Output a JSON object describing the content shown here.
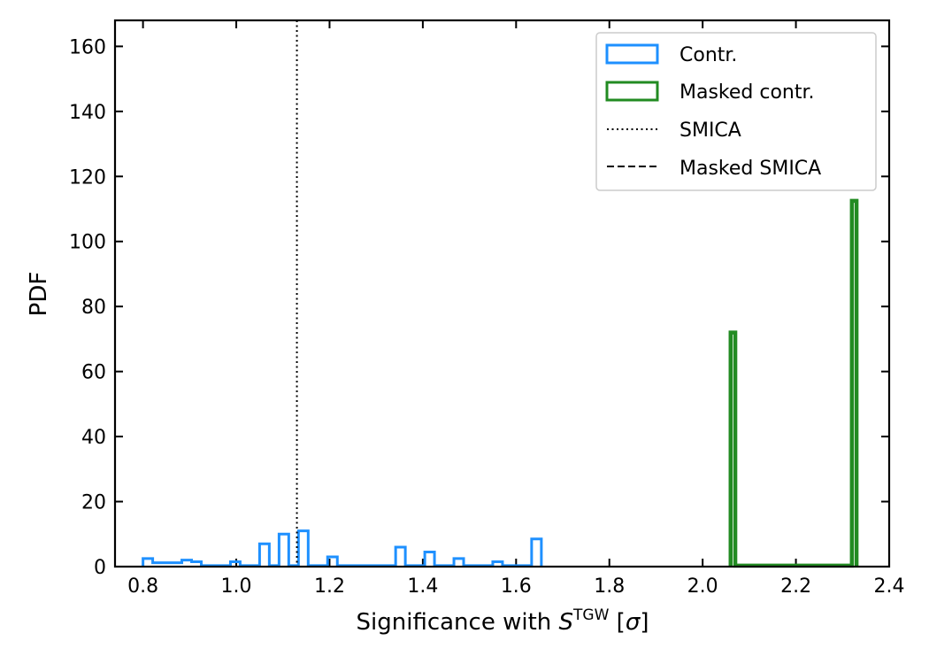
{
  "chart_data": {
    "type": "histogram",
    "xlabel_prefix": "Significance with ",
    "xlabel_symbol": "S",
    "xlabel_superscript": "TGW",
    "xlabel_suffix_open": " [",
    "xlabel_sigma": "σ",
    "xlabel_suffix_close": "]",
    "ylabel": "PDF",
    "xlim": [
      0.74,
      2.4
    ],
    "ylim": [
      0,
      168
    ],
    "xticks": [
      0.8,
      1.0,
      1.2,
      1.4,
      1.6,
      1.8,
      2.0,
      2.2,
      2.4
    ],
    "xtick_labels": [
      "0.8",
      "1.0",
      "1.2",
      "1.4",
      "1.6",
      "1.8",
      "2.0",
      "2.2",
      "2.4"
    ],
    "yticks": [
      0,
      20,
      40,
      60,
      80,
      100,
      120,
      140,
      160
    ],
    "ytick_labels": [
      "0",
      "20",
      "40",
      "60",
      "80",
      "100",
      "120",
      "140",
      "160"
    ],
    "legend_position": "top-right",
    "series": [
      {
        "name": "Contr.",
        "kind": "step-histogram",
        "color": "#1e90ff",
        "bin_edges": [
          0.8,
          0.8208,
          0.8417,
          0.8625,
          0.8833,
          0.9042,
          0.925,
          0.9458,
          0.9667,
          0.9875,
          1.0083,
          1.0292,
          1.05,
          1.0708,
          1.0917,
          1.1125,
          1.1333,
          1.1542,
          1.175,
          1.1958,
          1.2167,
          1.2375,
          1.2583,
          1.2792,
          1.3,
          1.3208,
          1.3417,
          1.3625,
          1.3833,
          1.4042,
          1.425,
          1.4458,
          1.4667,
          1.4875,
          1.5083,
          1.5292,
          1.55,
          1.5708,
          1.5917,
          1.6125,
          1.6333,
          1.6542
        ],
        "counts": [
          2.5,
          1.2,
          1.2,
          1.2,
          2.0,
          1.5,
          0.3,
          0.3,
          0.3,
          1.5,
          0.3,
          0.3,
          7.0,
          0.3,
          10.0,
          0.3,
          11.0,
          0.3,
          0.3,
          3.0,
          0.3,
          0.3,
          0.3,
          0.3,
          0.3,
          0.3,
          6.0,
          0.3,
          0.3,
          4.5,
          0.3,
          0.3,
          2.5,
          0.3,
          0.3,
          0.3,
          1.5,
          0.3,
          0.3,
          0.3,
          8.5
        ]
      },
      {
        "name": "Masked contr.",
        "kind": "step-histogram",
        "color": "#228b22",
        "bin_edges": [
          2.06,
          2.07,
          2.32,
          2.33
        ],
        "counts": [
          72,
          0.3,
          112.5
        ]
      },
      {
        "name": "SMICA",
        "kind": "vline",
        "style": "dotted",
        "color": "#000000",
        "x": 1.13
      },
      {
        "name": "Masked SMICA",
        "kind": "vline",
        "style": "dashed",
        "color": "#000000",
        "x": null
      }
    ]
  }
}
